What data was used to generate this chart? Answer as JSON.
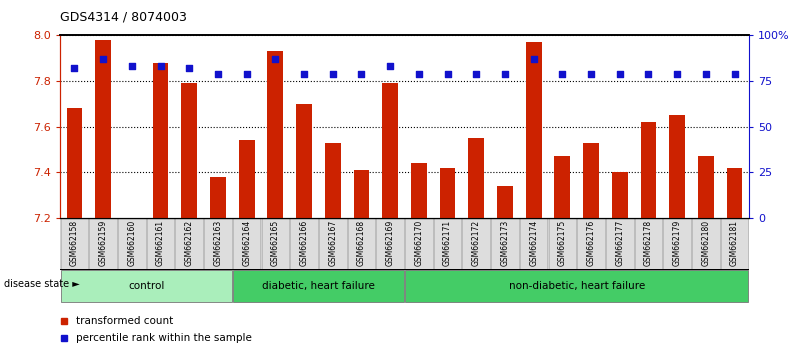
{
  "title": "GDS4314 / 8074003",
  "samples": [
    "GSM662158",
    "GSM662159",
    "GSM662160",
    "GSM662161",
    "GSM662162",
    "GSM662163",
    "GSM662164",
    "GSM662165",
    "GSM662166",
    "GSM662167",
    "GSM662168",
    "GSM662169",
    "GSM662170",
    "GSM662171",
    "GSM662172",
    "GSM662173",
    "GSM662174",
    "GSM662175",
    "GSM662176",
    "GSM662177",
    "GSM662178",
    "GSM662179",
    "GSM662180",
    "GSM662181"
  ],
  "red_values": [
    7.68,
    7.98,
    7.2,
    7.88,
    7.79,
    7.38,
    7.54,
    7.93,
    7.7,
    7.53,
    7.41,
    7.79,
    7.44,
    7.42,
    7.55,
    7.34,
    7.97,
    7.47,
    7.53,
    7.4,
    7.62,
    7.65,
    7.47,
    7.42
  ],
  "blue_values": [
    82,
    87,
    83,
    83,
    82,
    79,
    79,
    87,
    79,
    79,
    79,
    83,
    79,
    79,
    79,
    79,
    87,
    79,
    79,
    79,
    79,
    79,
    79,
    79
  ],
  "ylim_left": [
    7.2,
    8.0
  ],
  "ylim_right": [
    0,
    100
  ],
  "yticks_left": [
    7.2,
    7.4,
    7.6,
    7.8,
    8.0
  ],
  "yticks_right": [
    0,
    25,
    50,
    75,
    100
  ],
  "ytick_labels_right": [
    "0",
    "25",
    "50",
    "75",
    "100%"
  ],
  "bar_color": "#CC2200",
  "dot_color": "#1111CC",
  "bar_width": 0.55,
  "left_tick_color": "#CC2200",
  "right_tick_color": "#1111CC",
  "legend_red": "transformed count",
  "legend_blue": "percentile rank within the sample",
  "disease_state_label": "disease state",
  "groups_info": [
    {
      "start": 0,
      "end": 5,
      "label": "control",
      "color": "#AAEEBB"
    },
    {
      "start": 6,
      "end": 11,
      "label": "diabetic, heart failure",
      "color": "#44CC66"
    },
    {
      "start": 12,
      "end": 23,
      "label": "non-diabetic, heart failure",
      "color": "#44CC66"
    }
  ]
}
